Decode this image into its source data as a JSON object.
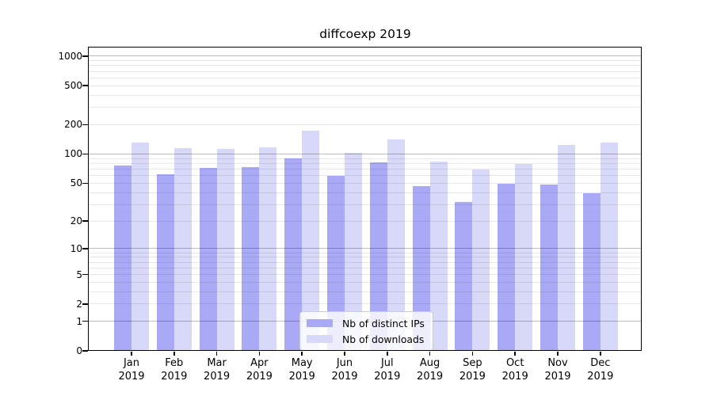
{
  "title": "diffcoexp 2019",
  "chart_data": {
    "type": "bar",
    "title": "diffcoexp 2019",
    "categories": [
      "Jan 2019",
      "Feb 2019",
      "Mar 2019",
      "Apr 2019",
      "May 2019",
      "Jun 2019",
      "Jul 2019",
      "Aug 2019",
      "Sep 2019",
      "Oct 2019",
      "Nov 2019",
      "Dec 2019"
    ],
    "series": [
      {
        "name": "Nb of distinct IPs",
        "color": "#a9a9f6",
        "values": [
          76,
          62,
          72,
          73,
          90,
          60,
          82,
          47,
          32,
          49,
          48,
          39
        ]
      },
      {
        "name": "Nb of downloads",
        "color": "#d8d8f8",
        "values": [
          131,
          115,
          113,
          117,
          174,
          103,
          141,
          83,
          69,
          79,
          124,
          131
        ]
      }
    ],
    "xlabel": "",
    "ylabel": "",
    "y_ticks": [
      0,
      1,
      2,
      5,
      10,
      20,
      50,
      100,
      200,
      500,
      1000
    ],
    "y_scale": "log1p",
    "y_range": [
      0,
      1250
    ],
    "grid": true,
    "legend_position": "inside-bottom-center"
  },
  "legend": {
    "entries": [
      {
        "label": "Nb of distinct IPs",
        "color": "#a9a9f6"
      },
      {
        "label": "Nb of downloads",
        "color": "#d8d8f8"
      }
    ]
  },
  "colors": {
    "bar_distinct_ips": "#a9a9f6",
    "bar_downloads": "#d8d8f8",
    "major_grid": "#bdbdbd",
    "minor_grid": "#e9e9e9",
    "axis": "#000000",
    "legend_border": "#cccccc",
    "legend_bg": "rgba(255,255,255,0.8)",
    "text": "#000000"
  }
}
